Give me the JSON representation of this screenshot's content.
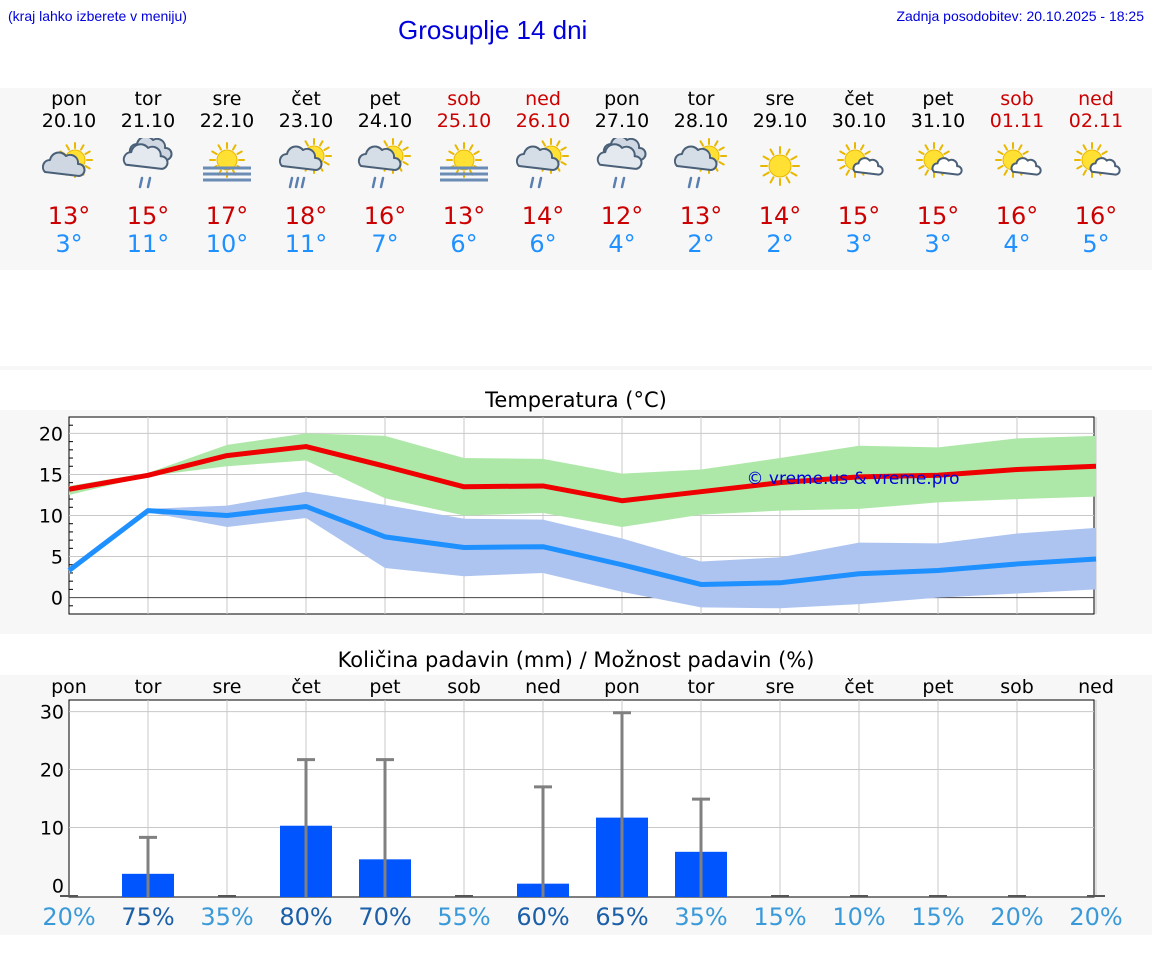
{
  "header": {
    "hint": "(kraj lahko izberete v meniju)",
    "title": "Grosuplje 14 dni",
    "updated": "Zadnja posodobitev: 20.10.2025 - 18:25"
  },
  "days": [
    {
      "name": "pon",
      "date": "20.10",
      "icon": "cloud-sun",
      "max": "13°",
      "min": "3°",
      "weekend": false
    },
    {
      "name": "tor",
      "date": "21.10",
      "icon": "rain-cloud",
      "max": "15°",
      "min": "11°",
      "weekend": false
    },
    {
      "name": "sre",
      "date": "22.10",
      "icon": "fog-sun",
      "max": "17°",
      "min": "10°",
      "weekend": false
    },
    {
      "name": "čet",
      "date": "23.10",
      "icon": "sun-rain-cloud",
      "max": "18°",
      "min": "11°",
      "weekend": false
    },
    {
      "name": "pet",
      "date": "24.10",
      "icon": "sun-drizzle-cloud",
      "max": "16°",
      "min": "7°",
      "weekend": false
    },
    {
      "name": "sob",
      "date": "25.10",
      "icon": "fog-sun",
      "max": "13°",
      "min": "6°",
      "weekend": true
    },
    {
      "name": "ned",
      "date": "26.10",
      "icon": "sun-drizzle-cloud",
      "max": "14°",
      "min": "6°",
      "weekend": true
    },
    {
      "name": "pon",
      "date": "27.10",
      "icon": "rain-cloud",
      "max": "12°",
      "min": "4°",
      "weekend": false
    },
    {
      "name": "tor",
      "date": "28.10",
      "icon": "sun-drizzle-cloud",
      "max": "13°",
      "min": "2°",
      "weekend": false
    },
    {
      "name": "sre",
      "date": "29.10",
      "icon": "sun",
      "max": "14°",
      "min": "2°",
      "weekend": false
    },
    {
      "name": "čet",
      "date": "30.10",
      "icon": "sun-small-cloud",
      "max": "15°",
      "min": "3°",
      "weekend": false
    },
    {
      "name": "pet",
      "date": "31.10",
      "icon": "sun-small-cloud",
      "max": "15°",
      "min": "3°",
      "weekend": false
    },
    {
      "name": "sob",
      "date": "01.11",
      "icon": "sun-small-cloud",
      "max": "16°",
      "min": "4°",
      "weekend": true
    },
    {
      "name": "ned",
      "date": "02.11",
      "icon": "sun-small-cloud",
      "max": "16°",
      "min": "5°",
      "weekend": true
    }
  ],
  "colors": {
    "max": "#ee0000",
    "min": "#1e90ff",
    "max_band": "#aee8a8",
    "min_band": "#adc4f0",
    "bar": "#0055ff",
    "whisker": "#808080",
    "prob_high": "#1a5fa8",
    "prob_low": "#3a9ad9"
  },
  "chart_data": [
    {
      "type": "line",
      "title": "Temperatura (°C)",
      "watermark": "© vreme.us & vreme.pro",
      "ylim": [
        -2,
        22
      ],
      "yticks": [
        "0",
        "5",
        "10",
        "15",
        "20"
      ],
      "x": [
        0,
        1,
        2,
        3,
        4,
        5,
        6,
        7,
        8,
        9,
        10,
        11,
        12,
        13
      ],
      "series": [
        {
          "name": "max",
          "values": [
            13.2,
            14.9,
            17.3,
            18.4,
            16.0,
            13.5,
            13.6,
            11.8,
            12.9,
            14.0,
            14.7,
            14.9,
            15.6,
            16.0
          ],
          "low": [
            12.5,
            14.8,
            16.0,
            16.7,
            12.1,
            10.0,
            10.3,
            8.6,
            10.1,
            10.6,
            10.8,
            11.6,
            12.0,
            12.3
          ],
          "high": [
            13.6,
            15.2,
            18.6,
            20.0,
            19.7,
            17.0,
            16.9,
            15.1,
            15.6,
            17.0,
            18.5,
            18.3,
            19.4,
            19.7
          ]
        },
        {
          "name": "min",
          "values": [
            3.3,
            10.6,
            10.0,
            11.1,
            7.4,
            6.1,
            6.2,
            4.0,
            1.6,
            1.8,
            2.9,
            3.3,
            4.1,
            4.7
          ],
          "low": [
            2.9,
            10.4,
            8.6,
            9.7,
            3.6,
            2.6,
            3.0,
            0.7,
            -1.2,
            -1.3,
            -0.8,
            0.0,
            0.5,
            1.0
          ],
          "high": [
            3.6,
            10.8,
            11.2,
            12.9,
            11.3,
            9.6,
            9.5,
            7.2,
            4.4,
            4.9,
            6.7,
            6.6,
            7.8,
            8.5
          ]
        }
      ]
    },
    {
      "type": "bar",
      "title": "Količina padavin (mm) / Možnost padavin (%)",
      "categories": [
        "pon",
        "tor",
        "sre",
        "čet",
        "pet",
        "sob",
        "ned",
        "pon",
        "tor",
        "sre",
        "čet",
        "pet",
        "sob",
        "ned"
      ],
      "ylim": [
        -2,
        32
      ],
      "yticks": [
        "0",
        "10",
        "20",
        "30"
      ],
      "values": [
        0,
        2,
        0,
        10.3,
        4.5,
        0,
        0.3,
        11.7,
        5.8,
        0,
        0,
        0,
        0,
        0
      ],
      "whisker_max": [
        0,
        8.3,
        0,
        21.7,
        21.7,
        0,
        17.0,
        29.8,
        14.9,
        0,
        0,
        0,
        0,
        0
      ],
      "probability": [
        "20%",
        "75%",
        "35%",
        "80%",
        "70%",
        "55%",
        "60%",
        "65%",
        "35%",
        "15%",
        "10%",
        "15%",
        "20%",
        "20%"
      ]
    }
  ]
}
